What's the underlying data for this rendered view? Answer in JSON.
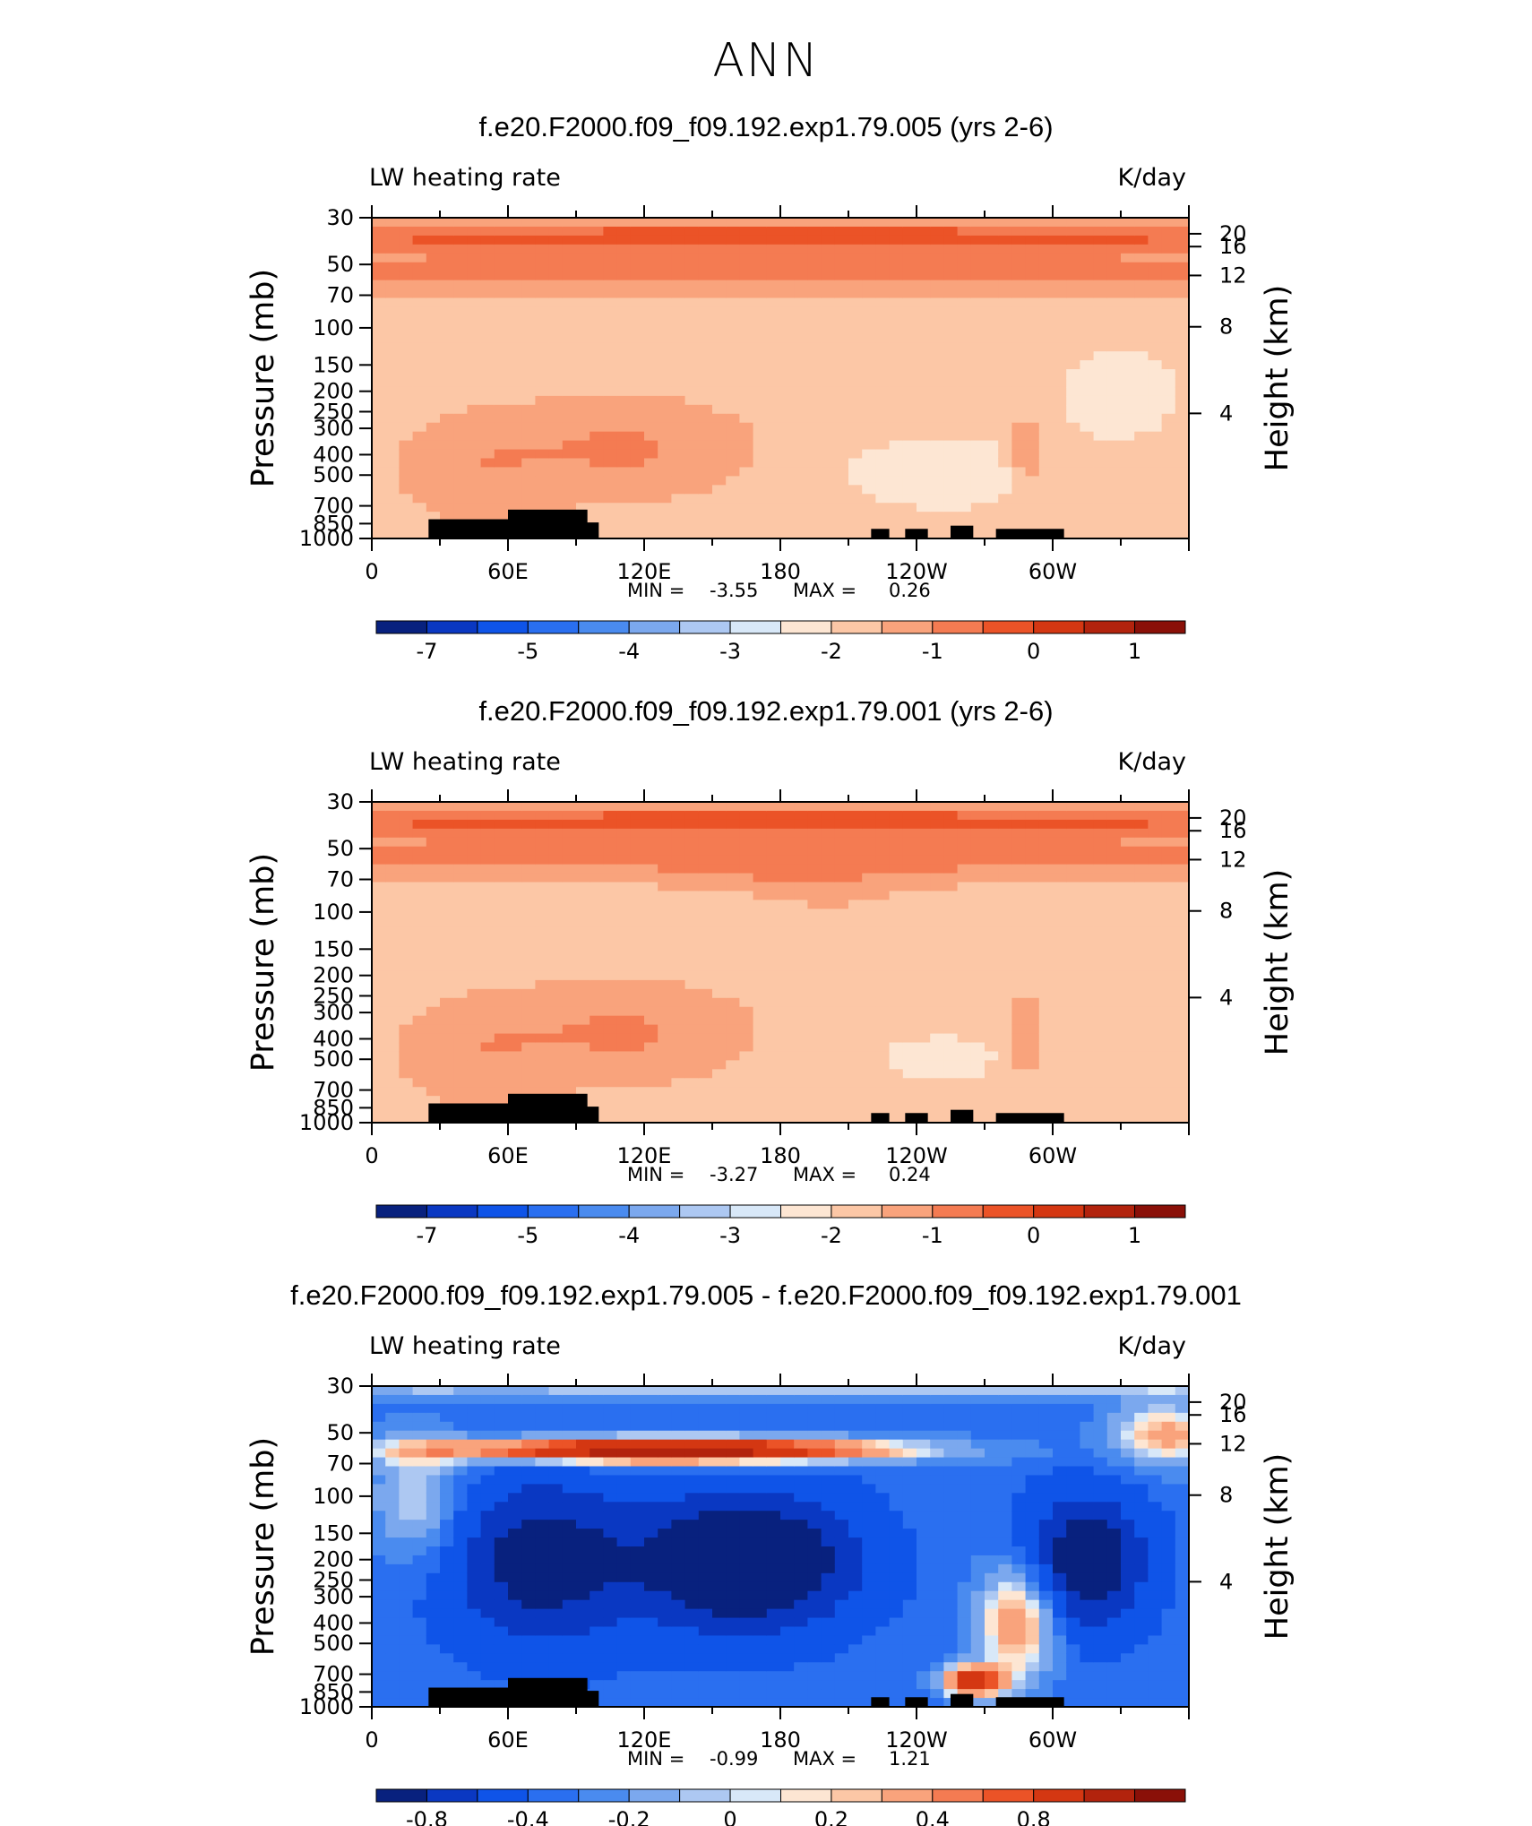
{
  "figure_title": "ANN",
  "chart_data": [
    {
      "type": "heatmap",
      "title": "f.e20.F2000.f09_f09.192.exp1.79.005 (yrs 2-6)",
      "variable": "LW heating rate",
      "units": "K/day",
      "ylabel": "Pressure (mb)",
      "y2label": "Height (km)",
      "pressure_ticks": [
        "30",
        "50",
        "70",
        "100",
        "150",
        "200",
        "250",
        "300",
        "400",
        "500",
        "700",
        "850",
        "1000"
      ],
      "height_ticks": [
        "20",
        "16",
        "12",
        "8",
        "4"
      ],
      "lon_ticks": [
        "0",
        "60E",
        "120E",
        "180",
        "120W",
        "60W"
      ],
      "min_label": "MIN =",
      "min": "-3.55",
      "max_label": "MAX =",
      "max": "0.26",
      "colorbar_labels": [
        "-7",
        "-5",
        "-4",
        "-3",
        "-2",
        "-1",
        "0",
        "1"
      ],
      "colorbar_colors": [
        "#08217e",
        "#0a38c2",
        "#0f54e8",
        "#2a6ff0",
        "#4a8bef",
        "#7ba8ee",
        "#adc8f2",
        "#d8e8f8",
        "#fde6d3",
        "#fcc7a6",
        "#f9a37c",
        "#f47b52",
        "#eb5327",
        "#d43712",
        "#b2230d",
        "#8a1008"
      ]
    },
    {
      "type": "heatmap",
      "title": "f.e20.F2000.f09_f09.192.exp1.79.001 (yrs 2-6)",
      "variable": "LW heating rate",
      "units": "K/day",
      "ylabel": "Pressure (mb)",
      "y2label": "Height (km)",
      "pressure_ticks": [
        "30",
        "50",
        "70",
        "100",
        "150",
        "200",
        "250",
        "300",
        "400",
        "500",
        "700",
        "850",
        "1000"
      ],
      "height_ticks": [
        "20",
        "16",
        "12",
        "8",
        "4"
      ],
      "lon_ticks": [
        "0",
        "60E",
        "120E",
        "180",
        "120W",
        "60W"
      ],
      "min_label": "MIN =",
      "min": "-3.27",
      "max_label": "MAX =",
      "max": "0.24",
      "colorbar_labels": [
        "-7",
        "-5",
        "-4",
        "-3",
        "-2",
        "-1",
        "0",
        "1"
      ],
      "colorbar_colors": [
        "#08217e",
        "#0a38c2",
        "#0f54e8",
        "#2a6ff0",
        "#4a8bef",
        "#7ba8ee",
        "#adc8f2",
        "#d8e8f8",
        "#fde6d3",
        "#fcc7a6",
        "#f9a37c",
        "#f47b52",
        "#eb5327",
        "#d43712",
        "#b2230d",
        "#8a1008"
      ]
    },
    {
      "type": "heatmap",
      "title": "f.e20.F2000.f09_f09.192.exp1.79.005 - f.e20.F2000.f09_f09.192.exp1.79.001",
      "variable": "LW heating rate",
      "units": "K/day",
      "ylabel": "Pressure (mb)",
      "y2label": "Height (km)",
      "pressure_ticks": [
        "30",
        "50",
        "70",
        "100",
        "150",
        "200",
        "250",
        "300",
        "400",
        "500",
        "700",
        "850",
        "1000"
      ],
      "height_ticks": [
        "20",
        "16",
        "12",
        "8",
        "4"
      ],
      "lon_ticks": [
        "0",
        "60E",
        "120E",
        "180",
        "120W",
        "60W"
      ],
      "min_label": "MIN =",
      "min": "-0.99",
      "max_label": "MAX =",
      "max": "1.21",
      "colorbar_labels": [
        "-0.8",
        "-0.4",
        "-0.2",
        "0",
        "0.2",
        "0.4",
        "0.8"
      ],
      "colorbar_colors": [
        "#08217e",
        "#0a38c2",
        "#0f54e8",
        "#2a6ff0",
        "#4a8bef",
        "#7ba8ee",
        "#adc8f2",
        "#d8e8f8",
        "#fde6d3",
        "#fcc7a6",
        "#f9a37c",
        "#f47b52",
        "#eb5327",
        "#d43712",
        "#b2230d",
        "#8a1008"
      ]
    }
  ]
}
